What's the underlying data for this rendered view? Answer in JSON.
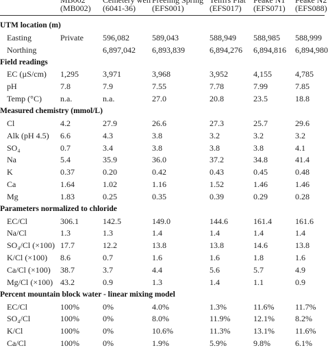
{
  "columns": {
    "top": [
      "MB002",
      "Cemetery well",
      "Freeling Spring",
      "Tellfrs Flat",
      "Peake N1",
      "Peake N2"
    ],
    "ids": [
      "(MB002)",
      "(6041-36)",
      "(EFS001)",
      "(EFS017)",
      "(EFS071)",
      "(EFS088)"
    ]
  },
  "sections": [
    {
      "title": "UTM location (m)",
      "rows": [
        {
          "label": "Easting",
          "values": [
            "Private",
            "596,082",
            "589,043",
            "588,949",
            "588,985",
            "588,999"
          ]
        },
        {
          "label": "Northing",
          "values": [
            "",
            "6,897,042",
            "6,893,839",
            "6,894,276",
            "6,894,816",
            "6,894,980"
          ]
        }
      ]
    },
    {
      "title": "Field readings",
      "rows": [
        {
          "label": "EC (µS/cm)",
          "values": [
            "1,295",
            "3,971",
            "3,968",
            "3,952",
            "4,155",
            "4,785"
          ]
        },
        {
          "label": "pH",
          "values": [
            "7.8",
            "7.9",
            "7.55",
            "7.78",
            "7.99",
            "7.85"
          ]
        },
        {
          "label": "Temp (°C)",
          "values": [
            "n.a.",
            "n.a.",
            "27.0",
            "20.8",
            "23.5",
            "18.8"
          ]
        }
      ]
    },
    {
      "title": "Measured chemistry (mmol/L)",
      "rows": [
        {
          "label": "Cl",
          "values": [
            "4.2",
            "27.9",
            "26.6",
            "27.3",
            "25.7",
            "29.6"
          ]
        },
        {
          "label": "Alk (pH 4.5)",
          "values": [
            "6.6",
            "4.3",
            "3.8",
            "3.2",
            "3.2",
            "3.2"
          ]
        },
        {
          "label": "SO₄",
          "values": [
            "0.7",
            "3.4",
            "3.8",
            "3.8",
            "3.8",
            "4.1"
          ]
        },
        {
          "label": "Na",
          "values": [
            "5.4",
            "35.9",
            "36.0",
            "37.2",
            "34.8",
            "41.4"
          ]
        },
        {
          "label": "K",
          "values": [
            "0.37",
            "0.20",
            "0.42",
            "0.43",
            "0.45",
            "0.48"
          ]
        },
        {
          "label": "Ca",
          "values": [
            "1.64",
            "1.02",
            "1.16",
            "1.52",
            "1.46",
            "1.46"
          ]
        },
        {
          "label": "Mg",
          "values": [
            "1.83",
            "0.25",
            "0.35",
            "0.39",
            "0.29",
            "0.28"
          ]
        }
      ]
    },
    {
      "title": "Parameters normalized to chloride",
      "rows": [
        {
          "label": "EC/Cl",
          "values": [
            "306.1",
            "142.5",
            "149.0",
            "144.6",
            "161.4",
            "161.6"
          ]
        },
        {
          "label": "Na/Cl",
          "values": [
            "1.3",
            "1.3",
            "1.4",
            "1.4",
            "1.4",
            "1.4"
          ]
        },
        {
          "label": "SO₄/Cl (×100)",
          "values": [
            "17.7",
            "12.2",
            "13.8",
            "13.8",
            "14.6",
            "13.8"
          ]
        },
        {
          "label": "K/Cl (×100)",
          "values": [
            "8.6",
            "0.7",
            "1.6",
            "1.6",
            "1.8",
            "1.6"
          ]
        },
        {
          "label": "Ca/Cl (×100)",
          "values": [
            "38.7",
            "3.7",
            "4.4",
            "5.6",
            "5.7",
            "4.9"
          ]
        },
        {
          "label": "Mg/Cl (×100)",
          "values": [
            "43.2",
            "0.9",
            "1.3",
            "1.4",
            "1.1",
            "0.9"
          ]
        }
      ]
    },
    {
      "title": "Percent mountain block water - linear mixing model",
      "rows": [
        {
          "label": "EC/Cl",
          "values": [
            "100%",
            "0%",
            "4.0%",
            "1.3%",
            "11.6%",
            "11.7%"
          ]
        },
        {
          "label": "SO₄/Cl",
          "values": [
            "100%",
            "0%",
            "8.0%",
            "11.9%",
            "12.1%",
            "8.2%"
          ]
        },
        {
          "label": "K/Cl",
          "values": [
            "100%",
            "0%",
            "10.6%",
            "11.3%",
            "13.1%",
            "11.6%"
          ]
        },
        {
          "label": "Ca/Cl",
          "values": [
            "100%",
            "0%",
            "1.9%",
            "5.9%",
            "9.8%",
            "6.1%"
          ]
        }
      ]
    }
  ]
}
